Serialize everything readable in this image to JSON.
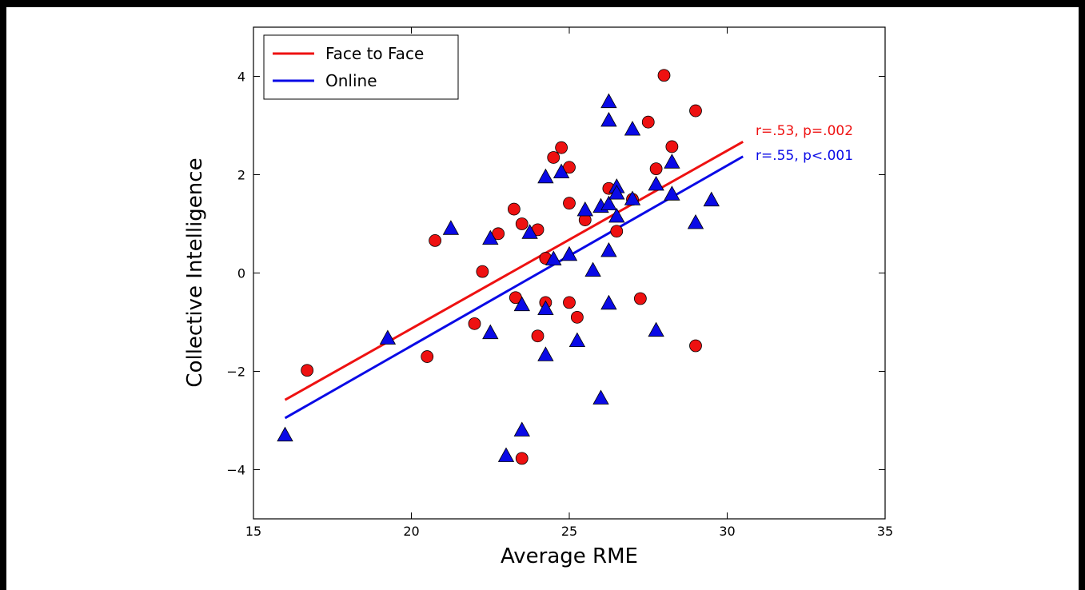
{
  "chart_data": {
    "type": "scatter",
    "title": "",
    "xlabel": "Average RME",
    "ylabel": "Collective Intelligence",
    "xlim": [
      15,
      35
    ],
    "ylim": [
      -5,
      5
    ],
    "xticks": [
      15,
      20,
      25,
      30,
      35
    ],
    "yticks": [
      -4,
      -2,
      0,
      2,
      4
    ],
    "xtick_labels": [
      "15",
      "20",
      "25",
      "30",
      "35"
    ],
    "ytick_labels": [
      "−4",
      "−2",
      "0",
      "2",
      "4"
    ],
    "grid": false,
    "legend_position": "top-left",
    "series": [
      {
        "name": "Face to Face",
        "color": "#ee1111",
        "marker": "circle",
        "points": [
          [
            16.7,
            -1.98
          ],
          [
            20.5,
            -1.7
          ],
          [
            20.75,
            0.66
          ],
          [
            22.0,
            -1.03
          ],
          [
            22.25,
            0.03
          ],
          [
            22.75,
            0.8
          ],
          [
            23.25,
            1.3
          ],
          [
            23.3,
            -0.5
          ],
          [
            23.5,
            1.0
          ],
          [
            23.5,
            -3.77
          ],
          [
            24.0,
            0.88
          ],
          [
            24.0,
            -1.28
          ],
          [
            24.25,
            0.3
          ],
          [
            24.25,
            -0.6
          ],
          [
            24.5,
            2.35
          ],
          [
            24.75,
            2.55
          ],
          [
            25.0,
            2.15
          ],
          [
            25.0,
            1.42
          ],
          [
            25.0,
            -0.6
          ],
          [
            25.25,
            -0.9
          ],
          [
            25.5,
            1.08
          ],
          [
            26.25,
            1.72
          ],
          [
            26.5,
            0.85
          ],
          [
            27.0,
            1.5
          ],
          [
            27.25,
            -0.52
          ],
          [
            27.5,
            3.07
          ],
          [
            27.75,
            2.12
          ],
          [
            28.0,
            4.02
          ],
          [
            28.25,
            2.57
          ],
          [
            29.0,
            3.3
          ],
          [
            29.0,
            -1.48
          ]
        ],
        "fit_line": {
          "x": [
            16.0,
            30.5
          ],
          "y": [
            -2.58,
            2.67
          ]
        }
      },
      {
        "name": "Online",
        "color": "#0a0ae6",
        "marker": "triangle",
        "points": [
          [
            16.0,
            -3.3
          ],
          [
            19.25,
            -1.33
          ],
          [
            21.25,
            0.9
          ],
          [
            22.5,
            0.7
          ],
          [
            22.5,
            -1.22
          ],
          [
            23.0,
            -3.72
          ],
          [
            23.5,
            -3.2
          ],
          [
            23.5,
            -0.65
          ],
          [
            23.75,
            0.82
          ],
          [
            24.25,
            1.95
          ],
          [
            24.25,
            -0.73
          ],
          [
            24.25,
            -1.67
          ],
          [
            24.5,
            0.28
          ],
          [
            24.75,
            2.05
          ],
          [
            25.0,
            0.37
          ],
          [
            25.25,
            -1.38
          ],
          [
            25.5,
            1.28
          ],
          [
            25.75,
            0.05
          ],
          [
            26.0,
            1.35
          ],
          [
            26.0,
            -2.55
          ],
          [
            26.25,
            3.48
          ],
          [
            26.25,
            3.1
          ],
          [
            26.25,
            1.4
          ],
          [
            26.25,
            0.45
          ],
          [
            26.25,
            -0.62
          ],
          [
            26.5,
            1.75
          ],
          [
            26.5,
            1.62
          ],
          [
            26.5,
            1.15
          ],
          [
            27.0,
            2.92
          ],
          [
            27.0,
            1.5
          ],
          [
            27.75,
            1.8
          ],
          [
            27.75,
            -1.17
          ],
          [
            28.25,
            2.25
          ],
          [
            28.25,
            1.6
          ],
          [
            29.0,
            1.02
          ],
          [
            29.5,
            1.48
          ]
        ],
        "fit_line": {
          "x": [
            16.0,
            30.5
          ],
          "y": [
            -2.95,
            2.37
          ]
        }
      }
    ],
    "annotations": [
      {
        "text": "r=.53, p=.002",
        "color": "#ee1111",
        "x": 30.9,
        "y": 2.9
      },
      {
        "text": "r=.55, p<.001",
        "color": "#0a0ae6",
        "x": 30.9,
        "y": 2.4
      }
    ]
  }
}
